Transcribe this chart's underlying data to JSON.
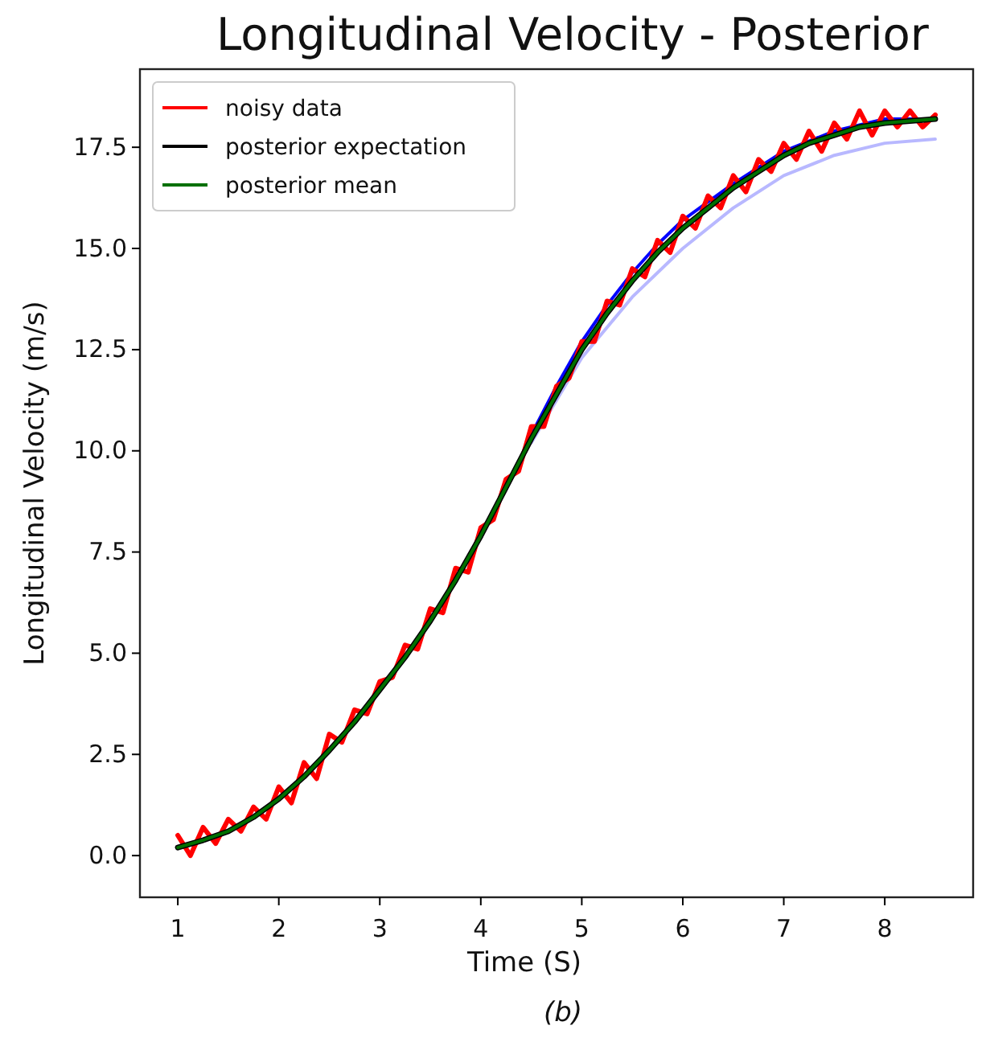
{
  "chart_data": {
    "type": "line",
    "title": "Longitudinal Velocity - Posterior",
    "xlabel": "Time (S)",
    "ylabel": "Longitudinal Velocity (m/s)",
    "annotations": [
      "(b)"
    ],
    "xlim": [
      0.625,
      8.875
    ],
    "ylim": [
      -1.03,
      19.43
    ],
    "xticks": [
      1,
      2,
      3,
      4,
      5,
      6,
      7,
      8
    ],
    "yticks": [
      {
        "value": 0,
        "label": "0.0"
      },
      {
        "value": 2.5,
        "label": "2.5"
      },
      {
        "value": 5,
        "label": "5.0"
      },
      {
        "value": 7.5,
        "label": "7.5"
      },
      {
        "value": 10,
        "label": "10.0"
      },
      {
        "value": 12.5,
        "label": "12.5"
      },
      {
        "value": 15,
        "label": "15.0"
      },
      {
        "value": 17.5,
        "label": "17.5"
      }
    ],
    "grid": false,
    "legend": "top left",
    "line_style": "solid",
    "marker": "none",
    "series": [
      {
        "color": "#b8b8ff",
        "x": [
          4.5,
          5,
          5.5,
          6,
          6.5,
          7,
          7.5,
          8,
          8.5
        ],
        "values": [
          10.2,
          12.3,
          13.8,
          15.0,
          16.0,
          16.8,
          17.3,
          17.6,
          17.7
        ]
      },
      {
        "color": "#0000ff",
        "x": [
          4.5,
          4.75,
          5,
          5.25,
          5.5,
          5.75,
          6,
          6.5,
          7,
          7.5,
          8,
          8.5
        ],
        "values": [
          10.4,
          11.6,
          12.7,
          13.6,
          14.4,
          15.1,
          15.7,
          16.6,
          17.4,
          17.9,
          18.2,
          18.2
        ]
      },
      {
        "name": "noisy data",
        "color": "#ff0000",
        "x": [
          1,
          1.125,
          1.25,
          1.375,
          1.5,
          1.625,
          1.75,
          1.875,
          2,
          2.125,
          2.25,
          2.375,
          2.5,
          2.625,
          2.75,
          2.875,
          3,
          3.125,
          3.25,
          3.375,
          3.5,
          3.625,
          3.75,
          3.875,
          4,
          4.125,
          4.25,
          4.375,
          4.5,
          4.625,
          4.75,
          4.875,
          5,
          5.125,
          5.25,
          5.375,
          5.5,
          5.625,
          5.75,
          5.875,
          6,
          6.125,
          6.25,
          6.375,
          6.5,
          6.625,
          6.75,
          6.875,
          7,
          7.125,
          7.25,
          7.375,
          7.5,
          7.625,
          7.75,
          7.875,
          8,
          8.125,
          8.25,
          8.375,
          8.5
        ],
        "values": [
          0.5,
          0.0,
          0.7,
          0.3,
          0.9,
          0.6,
          1.2,
          0.9,
          1.7,
          1.3,
          2.3,
          1.9,
          3.0,
          2.8,
          3.6,
          3.5,
          4.3,
          4.4,
          5.2,
          5.1,
          6.1,
          6.0,
          7.1,
          7.0,
          8.1,
          8.3,
          9.3,
          9.5,
          10.6,
          10.6,
          11.6,
          11.8,
          12.7,
          12.7,
          13.7,
          13.6,
          14.5,
          14.3,
          15.2,
          14.9,
          15.8,
          15.5,
          16.3,
          16.0,
          16.8,
          16.4,
          17.2,
          16.9,
          17.6,
          17.2,
          17.9,
          17.4,
          18.1,
          17.7,
          18.4,
          17.8,
          18.4,
          18.0,
          18.4,
          18.0,
          18.3
        ]
      },
      {
        "name": "posterior expectation",
        "color": "#000000",
        "x": [
          1,
          1.25,
          1.5,
          1.75,
          2,
          2.25,
          2.5,
          2.75,
          3,
          3.25,
          3.5,
          3.75,
          4,
          4.25,
          4.5,
          4.75,
          5,
          5.25,
          5.5,
          5.75,
          6,
          6.25,
          6.5,
          6.75,
          7,
          7.25,
          7.5,
          7.75,
          8,
          8.25,
          8.5
        ],
        "values": [
          0.2,
          0.38,
          0.6,
          0.95,
          1.4,
          1.95,
          2.6,
          3.3,
          4.1,
          4.9,
          5.8,
          6.8,
          7.9,
          9.1,
          10.3,
          11.4,
          12.5,
          13.4,
          14.2,
          14.9,
          15.5,
          16.0,
          16.5,
          16.9,
          17.3,
          17.6,
          17.8,
          18.0,
          18.1,
          18.15,
          18.2
        ]
      },
      {
        "name": "posterior mean",
        "color": "#007000",
        "x": [
          1,
          1.25,
          1.5,
          1.75,
          2,
          2.25,
          2.5,
          2.75,
          3,
          3.25,
          3.5,
          3.75,
          4,
          4.25,
          4.5,
          4.75,
          5,
          5.25,
          5.5,
          5.75,
          6,
          6.25,
          6.5,
          6.75,
          7,
          7.25,
          7.5,
          7.75,
          8,
          8.25,
          8.5
        ],
        "values": [
          0.2,
          0.38,
          0.6,
          0.95,
          1.4,
          1.95,
          2.6,
          3.3,
          4.1,
          4.9,
          5.8,
          6.8,
          7.9,
          9.1,
          10.3,
          11.4,
          12.5,
          13.4,
          14.2,
          14.9,
          15.5,
          16.0,
          16.5,
          16.9,
          17.3,
          17.6,
          17.8,
          18.0,
          18.1,
          18.15,
          18.2
        ]
      }
    ]
  }
}
